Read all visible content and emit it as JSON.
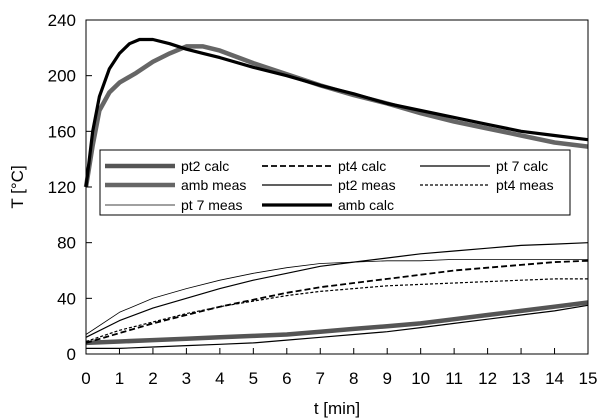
{
  "chart_data": {
    "type": "line",
    "title": "",
    "xlabel": "t [min]",
    "ylabel": "T [°C]",
    "xlim": [
      0,
      15
    ],
    "ylim": [
      0,
      240
    ],
    "x_ticks": [
      "0",
      "1",
      "2",
      "3",
      "4",
      "5",
      "6",
      "7",
      "8",
      "9",
      "10",
      "11",
      "12",
      "13",
      "14",
      "15"
    ],
    "y_ticks": [
      "0",
      "40",
      "80",
      "120",
      "160",
      "200",
      "240"
    ],
    "grid": false,
    "legend_placement": "center-left",
    "series": [
      {
        "name": "pt2 calc",
        "color": "#555555",
        "style": "thick-gray",
        "x": [
          0,
          1,
          2,
          3,
          4,
          5,
          6,
          7,
          8,
          9,
          10,
          11,
          12,
          13,
          14,
          15
        ],
        "y": [
          8,
          9,
          10,
          11,
          12,
          13,
          14,
          16,
          18,
          20,
          22,
          25,
          28,
          31,
          34,
          37
        ]
      },
      {
        "name": "pt4 calc",
        "color": "#000000",
        "style": "dashed",
        "x": [
          0,
          1,
          2,
          3,
          4,
          5,
          6,
          7,
          8,
          9,
          10,
          11,
          12,
          13,
          14,
          15
        ],
        "y": [
          8,
          15,
          22,
          28,
          34,
          39,
          44,
          48,
          51,
          54,
          57,
          60,
          62,
          64,
          66,
          67
        ]
      },
      {
        "name": "pt 7 calc",
        "color": "#000000",
        "style": "thin",
        "x": [
          0,
          1,
          2,
          3,
          4,
          5,
          6,
          7,
          8,
          9,
          10,
          11,
          12,
          13,
          14,
          15
        ],
        "y": [
          12,
          24,
          33,
          40,
          47,
          53,
          58,
          63,
          66,
          69,
          72,
          74,
          76,
          78,
          79,
          80
        ]
      },
      {
        "name": "amb meas",
        "color": "#666666",
        "style": "thick-gray",
        "x": [
          0,
          0.2,
          0.4,
          0.7,
          1.0,
          1.5,
          2,
          2.5,
          3,
          3.5,
          4,
          5,
          6,
          7,
          8,
          9,
          10,
          11,
          12,
          13,
          14,
          15
        ],
        "y": [
          120,
          150,
          175,
          188,
          195,
          202,
          210,
          216,
          221,
          221,
          218,
          209,
          201,
          193,
          186,
          180,
          173,
          167,
          162,
          157,
          152,
          149
        ]
      },
      {
        "name": "pt2 meas",
        "color": "#000000",
        "style": "thin",
        "x": [
          0,
          1,
          2,
          3,
          4,
          5,
          6,
          7,
          8,
          9,
          10,
          11,
          12,
          13,
          14,
          15
        ],
        "y": [
          4,
          4,
          5,
          6,
          7,
          8,
          10,
          12,
          14,
          16,
          19,
          22,
          25,
          28,
          31,
          35
        ]
      },
      {
        "name": "pt4 meas",
        "color": "#000000",
        "style": "dotted",
        "x": [
          0,
          1,
          2,
          3,
          4,
          5,
          6,
          7,
          8,
          9,
          10,
          11,
          12,
          13,
          14,
          15
        ],
        "y": [
          9,
          17,
          23,
          29,
          34,
          38,
          42,
          45,
          47,
          49,
          50,
          51,
          52,
          53,
          54,
          54
        ]
      },
      {
        "name": "pt 7 meas",
        "color": "#000000",
        "style": "hairline",
        "x": [
          0,
          1,
          2,
          3,
          4,
          5,
          6,
          7,
          8,
          9,
          10,
          11,
          12,
          13,
          14,
          15
        ],
        "y": [
          14,
          30,
          40,
          47,
          53,
          58,
          62,
          65,
          66,
          67,
          67,
          68,
          68,
          68,
          68,
          68
        ]
      },
      {
        "name": "amb calc",
        "color": "#000000",
        "style": "thick-black",
        "x": [
          0,
          0.2,
          0.4,
          0.7,
          1.0,
          1.3,
          1.6,
          2.0,
          2.5,
          3,
          3.5,
          4,
          5,
          6,
          7,
          8,
          9,
          10,
          11,
          12,
          13,
          14,
          15
        ],
        "y": [
          120,
          160,
          185,
          205,
          216,
          223,
          226,
          226,
          223,
          219,
          216,
          213,
          206,
          200,
          193,
          187,
          180,
          175,
          170,
          165,
          160,
          157,
          154
        ]
      }
    ]
  }
}
